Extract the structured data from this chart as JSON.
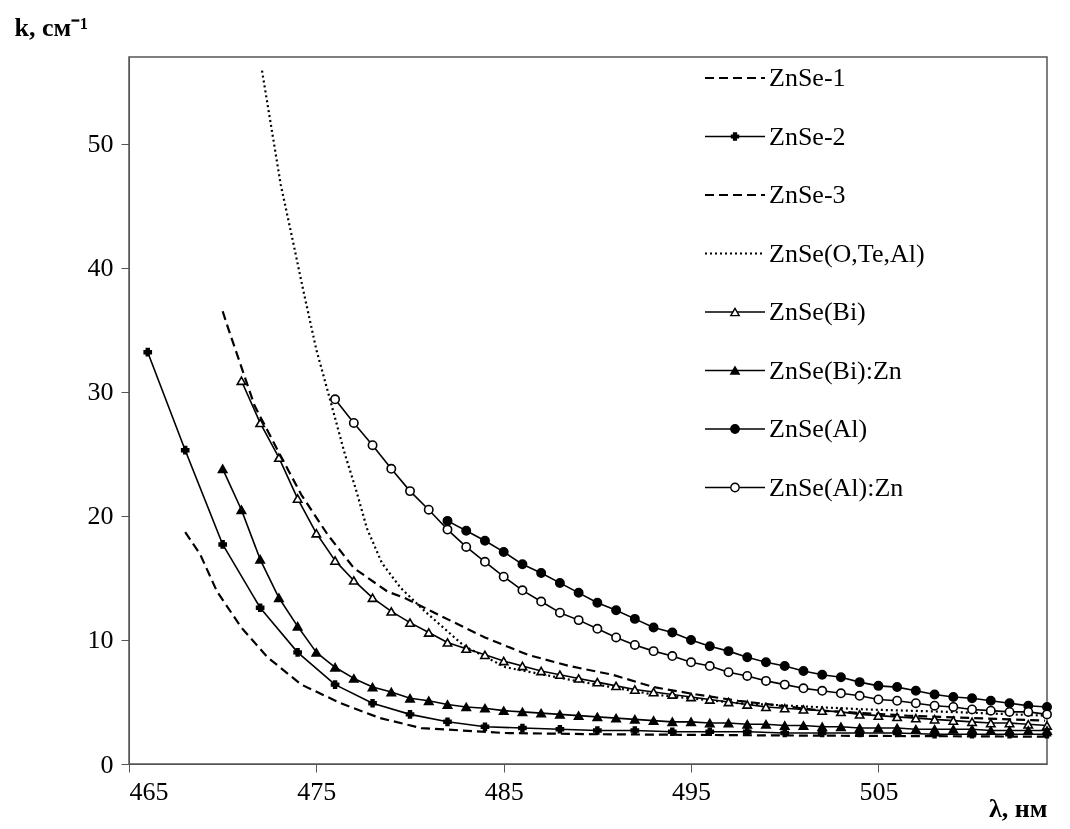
{
  "chart_data": {
    "type": "line",
    "xlabel": "λ, нм",
    "ylabel": "k, см⁻¹",
    "xlim": [
      465,
      514
    ],
    "ylim": [
      0,
      57
    ],
    "xticks": [
      465,
      475,
      485,
      495,
      505
    ],
    "yticks": [
      0,
      10,
      20,
      30,
      40,
      50
    ],
    "grid": false,
    "legend": "top right",
    "series": [
      {
        "name": "ZnSe-1",
        "color": "#000000",
        "line_style": "dashed",
        "marker": "none",
        "x": [
          468.0,
          468.8,
          469.7,
          471.0,
          472.4,
          474.2,
          476.3,
          478.4,
          480.6,
          485,
          490,
          500,
          514
        ],
        "values": [
          18.7,
          16.9,
          13.9,
          11.0,
          8.6,
          6.4,
          4.9,
          3.7,
          2.9,
          2.5,
          2.4,
          2.3,
          2.2
        ]
      },
      {
        "name": "ZnSe-2",
        "color": "#000000",
        "line_style": "solid",
        "marker": "cross",
        "x": [
          466,
          468,
          470,
          472,
          474,
          476,
          478,
          480,
          482,
          484,
          486,
          488,
          490,
          492,
          494,
          496,
          498,
          500,
          502,
          504,
          506,
          508,
          510,
          512,
          514
        ],
        "values": [
          33.2,
          25.3,
          17.7,
          12.6,
          9.0,
          6.4,
          4.9,
          4.0,
          3.4,
          3.0,
          2.9,
          2.8,
          2.7,
          2.7,
          2.6,
          2.6,
          2.6,
          2.5,
          2.5,
          2.5,
          2.5,
          2.4,
          2.4,
          2.4,
          2.4
        ]
      },
      {
        "name": "ZnSe-3",
        "color": "#000000",
        "line_style": "dashed",
        "marker": "none",
        "x": [
          470.0,
          470.3,
          471.7,
          472.9,
          474.2,
          475.6,
          477.0,
          478.8,
          479.7,
          481.7,
          484.0,
          486.3,
          488.5,
          490.8,
          493.0,
          495.3,
          497.5,
          502.0,
          506.5,
          513.9
        ],
        "values": [
          36.5,
          35.1,
          28.9,
          25.4,
          21.7,
          18.5,
          15.8,
          13.9,
          13.4,
          11.9,
          10.2,
          8.8,
          7.9,
          7.2,
          6.2,
          5.6,
          5.1,
          4.3,
          3.9,
          3.5
        ]
      },
      {
        "name": "ZnSe(O,Te,Al)",
        "color": "#000000",
        "line_style": "dotted",
        "marker": "none",
        "x": [
          472.1,
          472.6,
          473.1,
          473.7,
          474.3,
          475.0,
          475.8,
          476.5,
          477.1,
          477.7,
          478.5,
          479.5,
          480.8,
          482.9,
          485.1,
          488.5,
          493.0,
          497.6,
          504.3,
          508.8,
          513.9
        ],
        "values": [
          55.9,
          51.3,
          46.7,
          42.5,
          38.2,
          33.4,
          29.0,
          25.1,
          22.2,
          19.0,
          16.2,
          14.2,
          12.3,
          9.5,
          7.8,
          6.8,
          5.6,
          4.9,
          4.4,
          4.2,
          3.9
        ]
      },
      {
        "name": "ZnSe(Bi)",
        "color": "#000000",
        "line_style": "solid",
        "marker": "triangle",
        "colors": [
          "#ffffff",
          "#ffffff",
          "#ffffff",
          "#ffffff",
          "#ffffff",
          "#ffffff",
          "#ffffff",
          "#ffffff",
          "#ffffff",
          "#ffffff",
          "#ffffff",
          "#ffffff",
          "#ffffff",
          "#ffffff",
          "#ffffff",
          "#ffffff",
          "#ffffff",
          "#ffffff",
          "#ffffff",
          "#ffffff",
          "#ffffff",
          "#ffffff",
          "#ffffff",
          "#ffffff",
          "#ffffff",
          "#ffffff",
          "#ffffff",
          "#ffffff",
          "#ffffff",
          "#ffffff",
          "#ffffff",
          "#ffffff",
          "#ffffff",
          "#ffffff",
          "#ffffff",
          "#ffffff",
          "#ffffff",
          "#ffffff",
          "#ffffff",
          "#ffffff",
          "#ffffff",
          "#ffffff",
          "#ffffff",
          "#ffffff"
        ],
        "x": [
          471,
          472,
          473,
          474,
          475,
          476,
          477,
          478,
          479,
          480,
          481,
          482,
          483,
          484,
          485,
          486,
          487,
          488,
          489,
          490,
          491,
          492,
          493,
          494,
          495,
          496,
          497,
          498,
          499,
          500,
          501,
          502,
          503,
          504,
          505,
          506,
          507,
          508,
          509,
          510,
          511,
          512,
          513,
          514
        ],
        "values": [
          30.9,
          27.5,
          24.7,
          21.4,
          18.6,
          16.4,
          14.8,
          13.4,
          12.3,
          11.4,
          10.6,
          9.8,
          9.3,
          8.8,
          8.3,
          7.9,
          7.5,
          7.2,
          6.9,
          6.6,
          6.3,
          6.0,
          5.8,
          5.6,
          5.4,
          5.2,
          5.0,
          4.8,
          4.6,
          4.5,
          4.4,
          4.3,
          4.2,
          4.0,
          3.9,
          3.8,
          3.7,
          3.6,
          3.5,
          3.4,
          3.3,
          3.3,
          3.2,
          3.1
        ]
      },
      {
        "name": "ZnSe(Bi):Zn",
        "color": "#000000",
        "line_style": "solid",
        "marker": "triangle",
        "x": [
          470,
          471,
          472,
          473,
          474,
          475,
          476,
          477,
          478,
          479,
          480,
          481,
          482,
          483,
          484,
          485,
          486,
          487,
          488,
          489,
          490,
          491,
          492,
          493,
          494,
          495,
          496,
          497,
          498,
          499,
          500,
          501,
          502,
          503,
          504,
          505,
          506,
          507,
          508,
          509,
          510,
          511,
          512,
          513,
          514
        ],
        "values": [
          23.8,
          20.5,
          16.5,
          13.4,
          11.1,
          9.0,
          7.8,
          6.9,
          6.2,
          5.8,
          5.3,
          5.1,
          4.8,
          4.6,
          4.5,
          4.3,
          4.2,
          4.1,
          4.0,
          3.9,
          3.8,
          3.7,
          3.6,
          3.5,
          3.4,
          3.4,
          3.3,
          3.3,
          3.2,
          3.2,
          3.1,
          3.1,
          3.0,
          3.0,
          2.9,
          2.9,
          2.9,
          2.8,
          2.8,
          2.8,
          2.8,
          2.7,
          2.7,
          2.7,
          2.7
        ]
      },
      {
        "name": "ZnSe(Al)",
        "color": "#000000",
        "line_style": "solid",
        "marker": "circle",
        "x": [
          482,
          483,
          484,
          485,
          486,
          487,
          488,
          489,
          490,
          491,
          492,
          493,
          494,
          495,
          496,
          497,
          498,
          499,
          500,
          501,
          502,
          503,
          504,
          505,
          506,
          507,
          508,
          509,
          510,
          511,
          512,
          513,
          514
        ],
        "values": [
          19.6,
          18.8,
          18.0,
          17.1,
          16.1,
          15.4,
          14.6,
          13.8,
          13.0,
          12.4,
          11.7,
          11.0,
          10.6,
          10.0,
          9.5,
          9.1,
          8.6,
          8.2,
          7.9,
          7.5,
          7.2,
          7.0,
          6.6,
          6.3,
          6.2,
          5.9,
          5.6,
          5.4,
          5.3,
          5.1,
          4.9,
          4.7,
          4.6
        ]
      },
      {
        "name": "ZnSe(Al):Zn",
        "color": "#000000",
        "line_style": "solid",
        "marker": "circle",
        "colors": [
          "#ffffff",
          "#ffffff",
          "#ffffff",
          "#ffffff",
          "#ffffff",
          "#ffffff",
          "#ffffff",
          "#ffffff",
          "#ffffff",
          "#ffffff",
          "#ffffff",
          "#ffffff",
          "#ffffff",
          "#ffffff",
          "#ffffff",
          "#ffffff",
          "#ffffff",
          "#ffffff",
          "#ffffff",
          "#ffffff",
          "#ffffff",
          "#ffffff",
          "#ffffff",
          "#ffffff",
          "#ffffff",
          "#ffffff",
          "#ffffff",
          "#ffffff",
          "#ffffff",
          "#ffffff",
          "#ffffff",
          "#ffffff",
          "#ffffff",
          "#ffffff",
          "#ffffff",
          "#ffffff",
          "#ffffff",
          "#ffffff",
          "#ffffff"
        ],
        "x": [
          476,
          477,
          478,
          479,
          480,
          481,
          482,
          483,
          484,
          485,
          486,
          487,
          488,
          489,
          490,
          491,
          492,
          493,
          494,
          495,
          496,
          497,
          498,
          499,
          500,
          501,
          502,
          503,
          504,
          505,
          506,
          507,
          508,
          509,
          510,
          511,
          512,
          513,
          514
        ],
        "values": [
          29.4,
          27.5,
          25.7,
          23.8,
          22.0,
          20.5,
          18.9,
          17.5,
          16.3,
          15.1,
          14.0,
          13.1,
          12.2,
          11.6,
          10.9,
          10.2,
          9.6,
          9.1,
          8.7,
          8.2,
          7.9,
          7.4,
          7.1,
          6.7,
          6.4,
          6.1,
          5.9,
          5.7,
          5.5,
          5.2,
          5.1,
          4.9,
          4.7,
          4.6,
          4.4,
          4.3,
          4.2,
          4.2,
          4.0
        ]
      }
    ]
  }
}
